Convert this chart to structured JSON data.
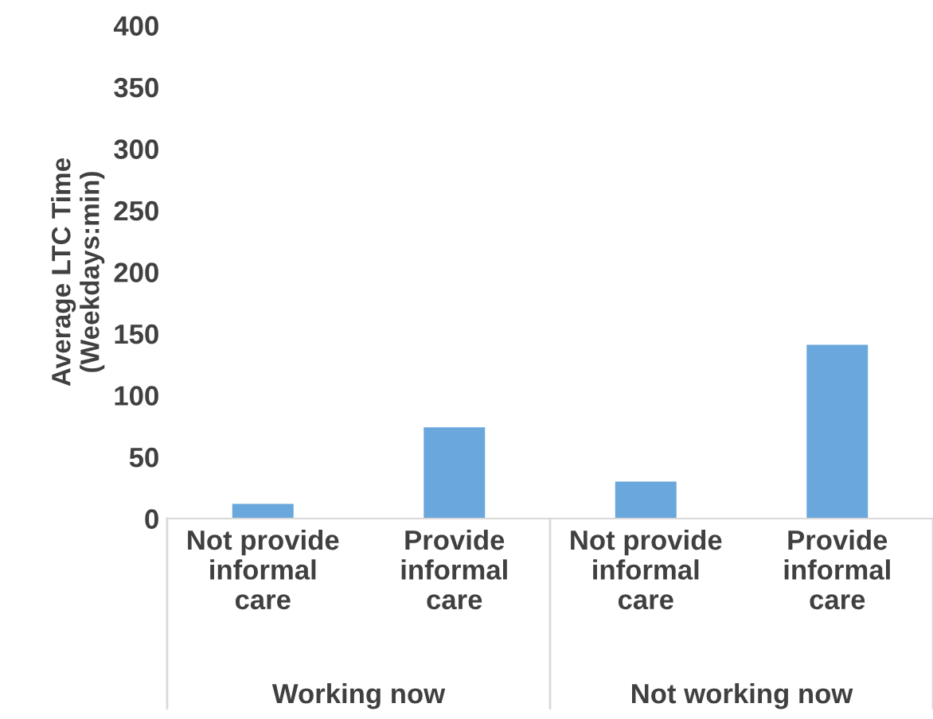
{
  "chart_data": {
    "type": "bar",
    "categories": [
      "Not provide\ninformal\ncare",
      "Provide\ninformal\ncare",
      "Not provide\ninformal\ncare",
      "Provide\ninformal\ncare"
    ],
    "values": [
      12,
      74,
      30,
      141
    ],
    "color": "#6aa7dc",
    "ylabel": "Average LTC Time\n(Weekdays:min)",
    "ylim": [
      0,
      400
    ],
    "yticks": [
      0,
      50,
      100,
      150,
      200,
      250,
      300,
      350,
      400
    ],
    "grid": false,
    "annotations": [
      "Working now",
      "Not working now"
    ]
  }
}
